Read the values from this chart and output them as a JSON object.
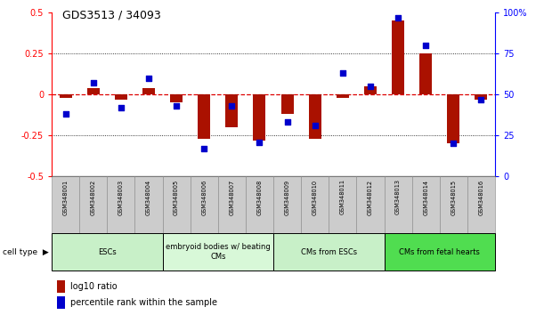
{
  "title": "GDS3513 / 34093",
  "samples": [
    "GSM348001",
    "GSM348002",
    "GSM348003",
    "GSM348004",
    "GSM348005",
    "GSM348006",
    "GSM348007",
    "GSM348008",
    "GSM348009",
    "GSM348010",
    "GSM348011",
    "GSM348012",
    "GSM348013",
    "GSM348014",
    "GSM348015",
    "GSM348016"
  ],
  "log10_ratio": [
    -0.02,
    0.04,
    -0.03,
    0.04,
    -0.05,
    -0.27,
    -0.2,
    -0.28,
    -0.12,
    -0.27,
    -0.02,
    0.05,
    0.45,
    0.25,
    -0.3,
    -0.03
  ],
  "percentile_rank": [
    38,
    57,
    42,
    60,
    43,
    17,
    43,
    21,
    33,
    31,
    63,
    55,
    97,
    80,
    20,
    47
  ],
  "cell_type_groups": [
    {
      "label": "ESCs",
      "start": 0,
      "end": 3,
      "color": "#c8f0c8"
    },
    {
      "label": "embryoid bodies w/ beating\nCMs",
      "start": 4,
      "end": 7,
      "color": "#d8f8d8"
    },
    {
      "label": "CMs from ESCs",
      "start": 8,
      "end": 11,
      "color": "#c8f0c8"
    },
    {
      "label": "CMs from fetal hearts",
      "start": 12,
      "end": 15,
      "color": "#50dd50"
    }
  ],
  "bar_color": "#aa1100",
  "dot_color": "#0000cc",
  "ylim_left": [
    -0.5,
    0.5
  ],
  "ylim_right": [
    0,
    100
  ],
  "yticks_left": [
    -0.5,
    -0.25,
    0,
    0.25,
    0.5
  ],
  "yticks_right": [
    0,
    25,
    50,
    75,
    100
  ],
  "ytick_labels_left": [
    "-0.5",
    "-0.25",
    "0",
    "0.25",
    "0.5"
  ],
  "ytick_labels_right": [
    "0",
    "25",
    "50",
    "75",
    "100%"
  ],
  "hline_color": "#dd0000",
  "dotted_color": "black",
  "background_color": "white"
}
